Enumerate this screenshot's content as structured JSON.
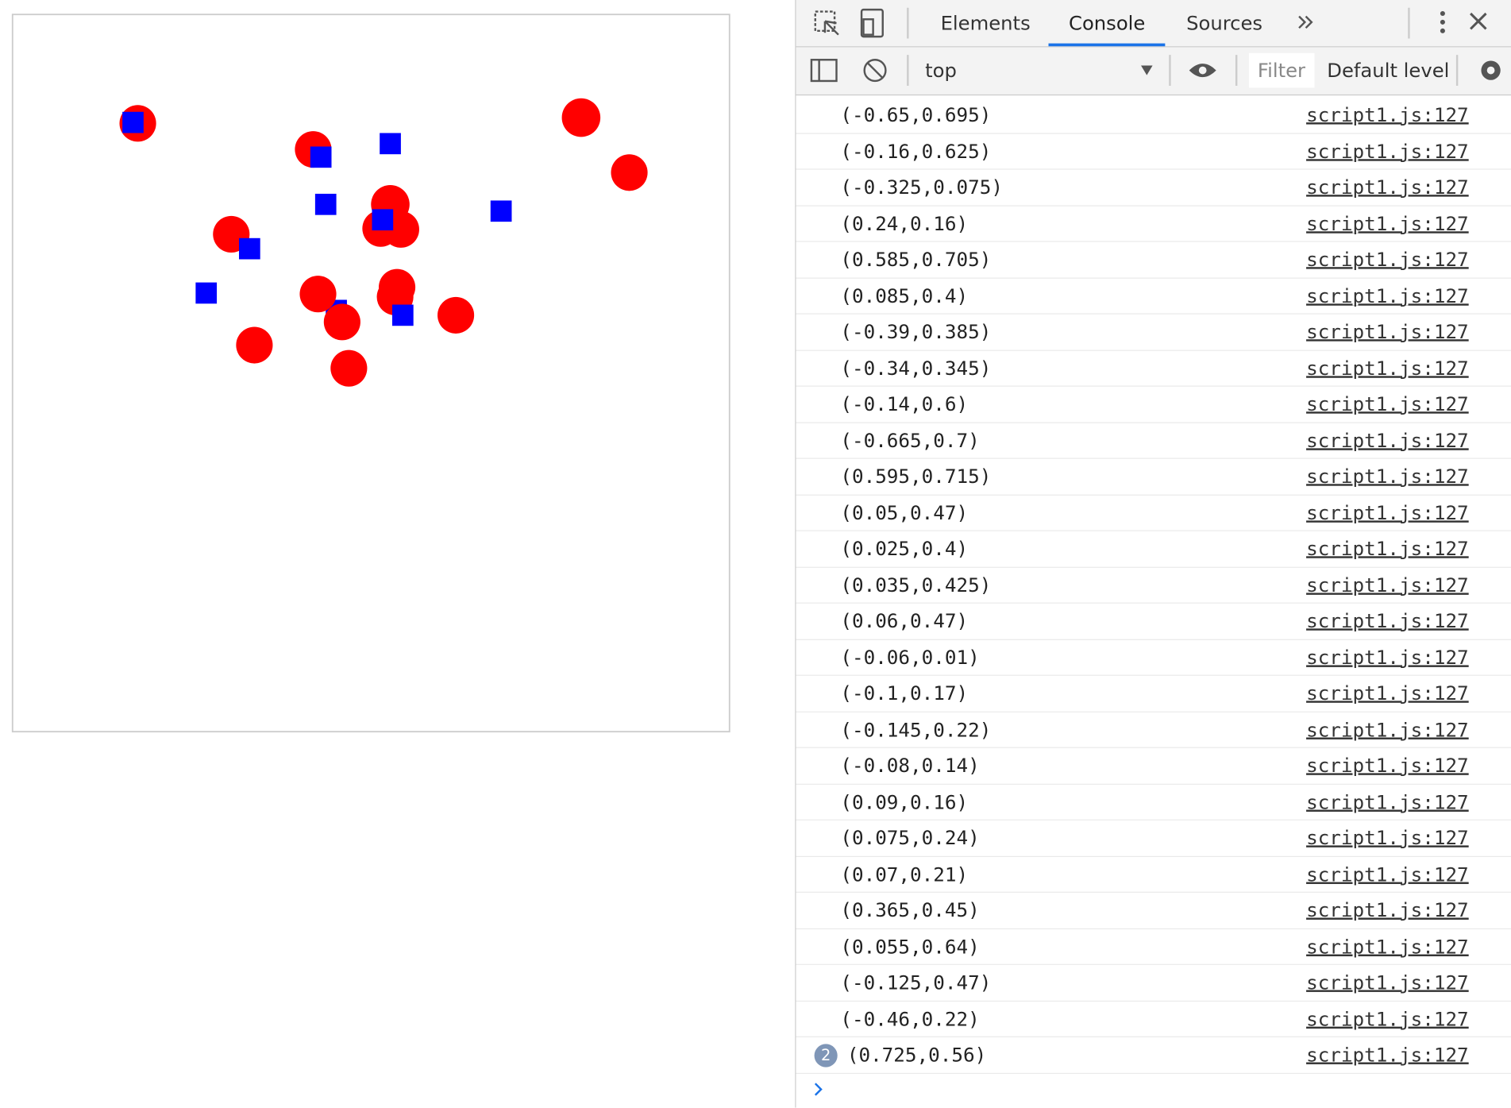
{
  "devtools": {
    "tabs": [
      "Elements",
      "Console",
      "Sources"
    ],
    "context": "top",
    "filter": "Filter",
    "level": "Default level",
    "messages": [
      {
        "text": "(-0.65,0.695)",
        "source": "script1.js:127"
      },
      {
        "text": "(-0.16,0.625)",
        "source": "script1.js:127"
      },
      {
        "text": "(-0.325,0.075)",
        "source": "script1.js:127"
      },
      {
        "text": "(0.24,0.16)",
        "source": "script1.js:127"
      },
      {
        "text": "(0.585,0.705)",
        "source": "script1.js:127"
      },
      {
        "text": "(0.085,0.4)",
        "source": "script1.js:127"
      },
      {
        "text": "(-0.39,0.385)",
        "source": "script1.js:127"
      },
      {
        "text": "(-0.34,0.345)",
        "source": "script1.js:127"
      },
      {
        "text": "(-0.14,0.6)",
        "source": "script1.js:127"
      },
      {
        "text": "(-0.665,0.7)",
        "source": "script1.js:127"
      },
      {
        "text": "(0.595,0.715)",
        "source": "script1.js:127"
      },
      {
        "text": "(0.05,0.47)",
        "source": "script1.js:127"
      },
      {
        "text": "(0.025,0.4)",
        "source": "script1.js:127"
      },
      {
        "text": "(0.035,0.425)",
        "source": "script1.js:127"
      },
      {
        "text": "(0.06,0.47)",
        "source": "script1.js:127"
      },
      {
        "text": "(-0.06,0.01)",
        "source": "script1.js:127"
      },
      {
        "text": "(-0.1,0.17)",
        "source": "script1.js:127"
      },
      {
        "text": "(-0.145,0.22)",
        "source": "script1.js:127"
      },
      {
        "text": "(-0.08,0.14)",
        "source": "script1.js:127"
      },
      {
        "text": "(0.09,0.16)",
        "source": "script1.js:127"
      },
      {
        "text": "(0.075,0.24)",
        "source": "script1.js:127"
      },
      {
        "text": "(0.07,0.21)",
        "source": "script1.js:127"
      },
      {
        "text": "(0.365,0.45)",
        "source": "script1.js:127"
      },
      {
        "text": "(0.055,0.64)",
        "source": "script1.js:127"
      },
      {
        "text": "(-0.125,0.47)",
        "source": "script1.js:127"
      },
      {
        "text": "(-0.46,0.22)",
        "source": "script1.js:127"
      },
      {
        "count": 2,
        "text": "(0.725,0.56)",
        "source": "script1.js:127"
      }
    ]
  }
}
